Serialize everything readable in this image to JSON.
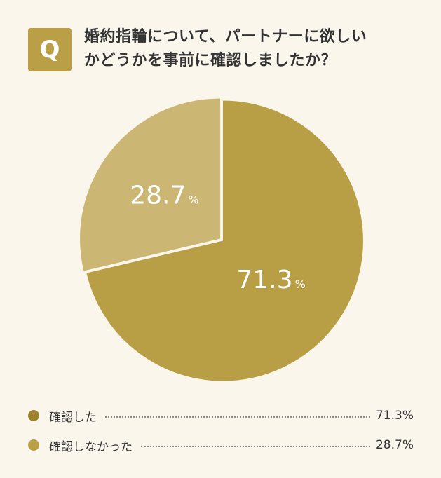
{
  "badge": {
    "letter": "Q",
    "color": "#bb9f46"
  },
  "question": {
    "line1": "婚約指輪について、パートナーに欲しい",
    "line2": "かどうかを事前に確認しましたか？"
  },
  "chart_data": {
    "type": "pie",
    "slices": [
      {
        "label": "確認した",
        "value": 71.3,
        "value_text": "71.3",
        "unit": "%",
        "legend_text": "71.3%",
        "color": "#b89e44",
        "legend_color": "#9e832f"
      },
      {
        "label": "確認しなかった",
        "value": 28.7,
        "value_text": "28.7",
        "unit": "%",
        "legend_text": "28.7%",
        "color": "#cbb673",
        "legend_color": "#bb9f46"
      }
    ]
  }
}
